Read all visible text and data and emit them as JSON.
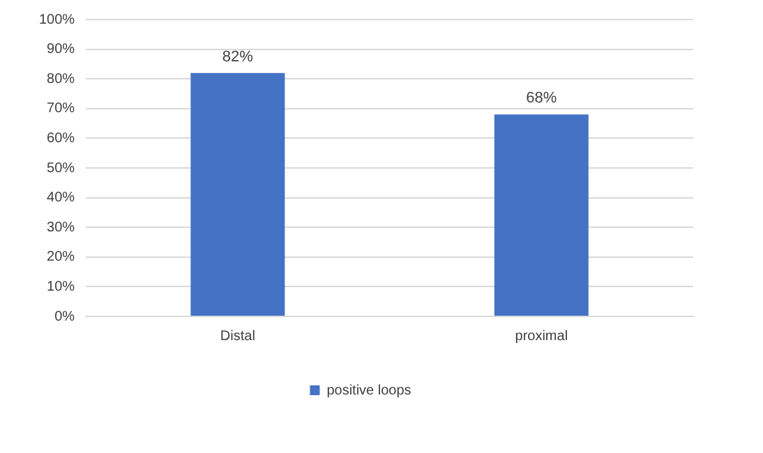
{
  "chart_data": {
    "type": "bar",
    "categories": [
      "Distal",
      "proximal"
    ],
    "series": [
      {
        "name": "positive loops",
        "color": "#4472c4",
        "values": [
          82,
          68
        ],
        "value_labels": [
          "82%",
          "68%"
        ]
      }
    ],
    "ylim": [
      0,
      100
    ],
    "yticks": [
      {
        "value": 0,
        "label": "0%"
      },
      {
        "value": 10,
        "label": "10%"
      },
      {
        "value": 20,
        "label": "20%"
      },
      {
        "value": 30,
        "label": "30%"
      },
      {
        "value": 40,
        "label": "40%"
      },
      {
        "value": 50,
        "label": "50%"
      },
      {
        "value": 60,
        "label": "60%"
      },
      {
        "value": 70,
        "label": "70%"
      },
      {
        "value": 80,
        "label": "80%"
      },
      {
        "value": 90,
        "label": "90%"
      },
      {
        "value": 100,
        "label": "100%"
      }
    ],
    "grid": "y",
    "legend": "bottom"
  }
}
